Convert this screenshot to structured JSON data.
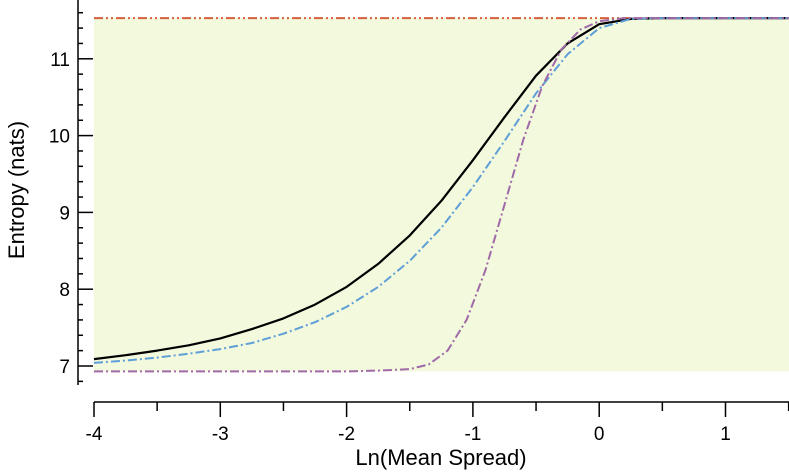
{
  "chart_data": {
    "type": "line",
    "xlabel": "Ln(Mean Spread)",
    "ylabel": "Entropy (nats)",
    "xlim": [
      -4,
      1.5
    ],
    "ylim": [
      6.6,
      11.6
    ],
    "x_ticks": [
      -4,
      -3,
      -2,
      -1,
      0,
      1
    ],
    "x_tick_labels": [
      "-4",
      "-3",
      "-2",
      "-1",
      "0",
      "1"
    ],
    "y_ticks": [
      7,
      8,
      9,
      10,
      11
    ],
    "y_tick_labels": [
      "7",
      "8",
      "9",
      "10",
      "11"
    ],
    "grid": false,
    "shaded_band": {
      "y_min": 6.93,
      "y_max": 11.53,
      "color": "#f2f9dd"
    },
    "series": [
      {
        "color": "#d65f3e",
        "dash": "dash-dot-dot",
        "points": [
          [
            -4,
            11.53
          ],
          [
            1.5,
            11.53
          ]
        ]
      },
      {
        "color": "#000000",
        "dash": "solid",
        "points": [
          [
            -4,
            7.09
          ],
          [
            -3.75,
            7.14
          ],
          [
            -3.5,
            7.2
          ],
          [
            -3.25,
            7.27
          ],
          [
            -3,
            7.36
          ],
          [
            -2.75,
            7.48
          ],
          [
            -2.5,
            7.62
          ],
          [
            -2.25,
            7.8
          ],
          [
            -2,
            8.03
          ],
          [
            -1.75,
            8.33
          ],
          [
            -1.5,
            8.7
          ],
          [
            -1.25,
            9.15
          ],
          [
            -1,
            9.68
          ],
          [
            -0.75,
            10.24
          ],
          [
            -0.5,
            10.78
          ],
          [
            -0.25,
            11.2
          ],
          [
            0,
            11.45
          ],
          [
            0.25,
            11.52
          ],
          [
            0.5,
            11.53
          ],
          [
            1.5,
            11.53
          ]
        ]
      },
      {
        "color": "#5f9fd8",
        "dash": "dash-dot",
        "points": [
          [
            -4,
            7.04
          ],
          [
            -3.75,
            7.07
          ],
          [
            -3.5,
            7.11
          ],
          [
            -3.25,
            7.16
          ],
          [
            -3,
            7.22
          ],
          [
            -2.75,
            7.3
          ],
          [
            -2.5,
            7.42
          ],
          [
            -2.25,
            7.57
          ],
          [
            -2,
            7.77
          ],
          [
            -1.75,
            8.03
          ],
          [
            -1.5,
            8.37
          ],
          [
            -1.25,
            8.8
          ],
          [
            -1,
            9.33
          ],
          [
            -0.75,
            9.93
          ],
          [
            -0.5,
            10.55
          ],
          [
            -0.25,
            11.06
          ],
          [
            0,
            11.4
          ],
          [
            0.25,
            11.52
          ],
          [
            0.5,
            11.53
          ],
          [
            1.5,
            11.53
          ]
        ]
      },
      {
        "color": "#a06aa8",
        "dash": "dash-dot",
        "points": [
          [
            -4,
            6.93
          ],
          [
            -3,
            6.93
          ],
          [
            -2,
            6.93
          ],
          [
            -1.75,
            6.94
          ],
          [
            -1.5,
            6.96
          ],
          [
            -1.35,
            7.02
          ],
          [
            -1.2,
            7.2
          ],
          [
            -1.05,
            7.6
          ],
          [
            -0.9,
            8.25
          ],
          [
            -0.75,
            9.1
          ],
          [
            -0.6,
            9.95
          ],
          [
            -0.45,
            10.65
          ],
          [
            -0.3,
            11.12
          ],
          [
            -0.15,
            11.38
          ],
          [
            0,
            11.49
          ],
          [
            0.2,
            11.53
          ],
          [
            1.5,
            11.53
          ]
        ]
      }
    ]
  }
}
